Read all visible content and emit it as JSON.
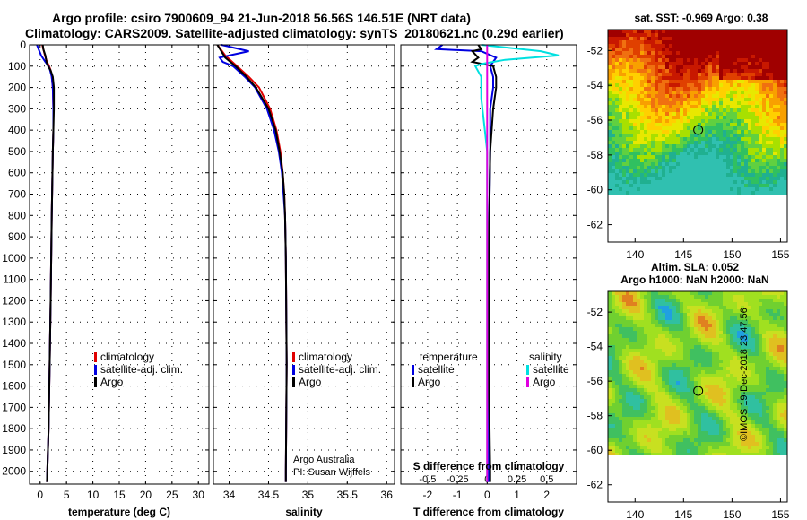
{
  "title_line1": "Argo profile: csiro 7900609_94 21-Jun-2018 56.56S 146.51E (NRT data)",
  "title_line2": "Climatology: CARS2009. Satellite-adjusted climatology: synTS_20180621.nc (0.29d earlier)",
  "credit": "©IMOS 19-Dec-2018 23:47:56",
  "colors": {
    "climatology": "#e00000",
    "satellite": "#0000e0",
    "argo": "#000000",
    "sal_satellite": "#00e0e0",
    "sal_argo": "#e000e0"
  },
  "chart_data": [
    {
      "id": "temperature",
      "type": "line",
      "xlabel": "temperature (deg C)",
      "ylabel": "depth",
      "xlim": [
        -2,
        32
      ],
      "ylim": [
        2060,
        0
      ],
      "xticks": [
        0,
        5,
        10,
        15,
        20,
        25,
        30
      ],
      "xtick_labels": [
        "0",
        "5",
        "10",
        "15",
        "20",
        "25",
        "30"
      ],
      "yticks": [
        0,
        100,
        200,
        300,
        400,
        500,
        600,
        700,
        800,
        900,
        1000,
        1100,
        1200,
        1300,
        1400,
        1500,
        1600,
        1700,
        1800,
        1900,
        2000
      ],
      "legend": [
        "climatology",
        "satellite-adj. clim.",
        "Argo"
      ],
      "series": [
        {
          "name": "climatology",
          "color": "#e00000",
          "depth": [
            0,
            20,
            50,
            80,
            100,
            120,
            150,
            200,
            300,
            400,
            500,
            800,
            1000,
            1200,
            1500,
            1800,
            2050
          ],
          "values": [
            0.4,
            0.6,
            0.9,
            1.3,
            1.7,
            2.0,
            2.2,
            2.4,
            2.5,
            2.5,
            2.4,
            2.2,
            2.1,
            2.0,
            1.8,
            1.6,
            1.3
          ]
        },
        {
          "name": "satellite-adj. clim.",
          "color": "#0000e0",
          "depth": [
            0,
            20,
            50,
            80,
            100,
            120,
            150,
            200,
            300,
            400,
            500,
            800,
            1000,
            1200,
            1500,
            1800,
            2050
          ],
          "values": [
            -0.6,
            -0.3,
            0.2,
            1.0,
            1.6,
            1.9,
            2.2,
            2.4,
            2.5,
            2.5,
            2.4,
            2.2,
            2.1,
            2.0,
            1.8,
            1.6,
            1.3
          ]
        },
        {
          "name": "Argo",
          "color": "#000000",
          "depth": [
            0,
            20,
            50,
            80,
            100,
            120,
            150,
            200,
            300,
            400,
            500,
            800,
            1000,
            1200,
            1500,
            1800,
            2050
          ],
          "values": [
            0.5,
            0.6,
            1.0,
            1.2,
            1.5,
            2.0,
            2.4,
            2.6,
            2.6,
            2.5,
            2.4,
            2.2,
            2.1,
            2.0,
            1.8,
            1.6,
            1.3
          ]
        }
      ]
    },
    {
      "id": "salinity",
      "type": "line",
      "xlabel": "salinity",
      "xlim": [
        33.8,
        36.1
      ],
      "ylim": [
        2060,
        0
      ],
      "xticks": [
        34,
        34.5,
        35,
        35.5,
        36
      ],
      "xtick_labels": [
        "34",
        "34.5",
        "35",
        "35.5",
        "36"
      ],
      "legend": [
        "climatology",
        "satellite-adj. clim.",
        "Argo"
      ],
      "annotation": [
        "Argo Australia",
        "PI: Susan Wijffels"
      ],
      "series": [
        {
          "name": "climatology",
          "color": "#e00000",
          "depth": [
            0,
            50,
            100,
            150,
            200,
            300,
            400,
            500,
            600,
            700,
            800,
            1000,
            1500,
            2000,
            2050
          ],
          "values": [
            33.85,
            33.95,
            34.1,
            34.25,
            34.38,
            34.52,
            34.6,
            34.65,
            34.68,
            34.7,
            34.71,
            34.72,
            34.73,
            34.72,
            34.72
          ]
        },
        {
          "name": "satellite-adj. clim.",
          "color": "#0000e0",
          "depth": [
            0,
            30,
            50,
            60,
            80,
            100,
            150,
            200,
            300,
            400,
            500,
            600,
            700,
            800,
            1000,
            1500,
            2000,
            2050
          ],
          "values": [
            33.9,
            34.25,
            34.0,
            33.88,
            33.92,
            34.05,
            34.2,
            34.33,
            34.48,
            34.57,
            34.63,
            34.67,
            34.69,
            34.71,
            34.72,
            34.73,
            34.72,
            34.72
          ]
        },
        {
          "name": "Argo",
          "color": "#000000",
          "depth": [
            0,
            60,
            100,
            150,
            200,
            300,
            400,
            500,
            600,
            700,
            800,
            1000,
            1500,
            2000,
            2050
          ],
          "values": [
            33.85,
            33.95,
            34.08,
            34.22,
            34.34,
            34.5,
            34.59,
            34.64,
            34.68,
            34.7,
            34.71,
            34.72,
            34.73,
            34.72,
            34.72
          ]
        }
      ]
    },
    {
      "id": "difference",
      "type": "line",
      "xlabel": "T difference from climatology",
      "xlabel2": "S difference from climatology",
      "xlim": [
        -2.9,
        3.0
      ],
      "ylim": [
        2060,
        0
      ],
      "xticks": [
        -2,
        -1,
        0,
        1,
        2
      ],
      "xtick_labels": [
        "-2",
        "-1",
        "0",
        "1",
        "2"
      ],
      "xticks_s": [
        -0.5,
        -0.25,
        0,
        0.25,
        0.5
      ],
      "xtick_labels_s": [
        "-0.5",
        "-0.25",
        "0",
        "0.25",
        "0.5"
      ],
      "legend_left_title": "temperature",
      "legend_left": [
        "satellite",
        "Argo"
      ],
      "legend_right_title": "salinity",
      "legend_right": [
        "satellite",
        "Argo"
      ],
      "series": [
        {
          "name": "temperature satellite",
          "color": "#0000e0",
          "depth": [
            0,
            20,
            30,
            60,
            80,
            100,
            150,
            200,
            300,
            500,
            1000,
            1500,
            2000,
            2050
          ],
          "values": [
            -1.5,
            -1.7,
            -0.2,
            0.3,
            0.2,
            0.1,
            0.2,
            0.2,
            0.1,
            0.1,
            0.05,
            0.05,
            0.05,
            0.05
          ]
        },
        {
          "name": "temperature Argo",
          "color": "#000000",
          "depth": [
            0,
            20,
            30,
            60,
            80,
            100,
            150,
            200,
            300,
            500,
            1000,
            1500,
            2000,
            2050
          ],
          "values": [
            -0.3,
            -0.2,
            -0.5,
            -0.3,
            -0.5,
            0.2,
            0.3,
            0.3,
            0.2,
            0.1,
            0.05,
            0.05,
            0.1,
            0.1
          ]
        },
        {
          "name": "salinity satellite",
          "color": "#00e0e0",
          "depth": [
            0,
            30,
            50,
            70,
            90,
            100,
            150,
            250,
            400,
            500,
            1000,
            1500,
            2000,
            2050
          ],
          "values": [
            -0.05,
            0.45,
            0.6,
            0.15,
            -0.05,
            -0.1,
            -0.05,
            -0.05,
            -0.02,
            0.0,
            0.0,
            0.0,
            0.0,
            0.0
          ]
        },
        {
          "name": "salinity Argo",
          "color": "#e000e0",
          "depth": [
            0,
            2050
          ],
          "values": [
            0,
            0
          ]
        }
      ]
    },
    {
      "id": "sst_map",
      "type": "heatmap",
      "title": "sat. SST: -0.969 Argo: 0.38",
      "xticks": [
        "140",
        "145",
        "150",
        "155"
      ],
      "yticks": [
        "-52",
        "-54",
        "-56",
        "-58",
        "-60",
        "-62"
      ],
      "marker": {
        "lon": 146.51,
        "lat": -56.56
      }
    },
    {
      "id": "sla_map",
      "type": "heatmap",
      "title": "Altim. SLA: 0.052",
      "subtitle": "Argo h1000: NaN h2000: NaN",
      "xticks": [
        "140",
        "145",
        "150",
        "155"
      ],
      "yticks": [
        "-52",
        "-54",
        "-56",
        "-58",
        "-60",
        "-62"
      ],
      "marker": {
        "lon": 146.51,
        "lat": -56.56
      }
    }
  ]
}
